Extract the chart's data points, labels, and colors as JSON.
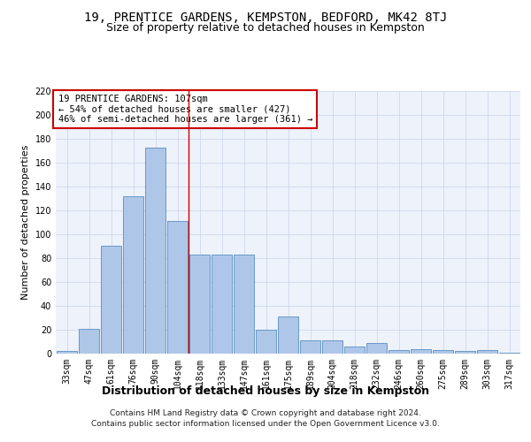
{
  "title1": "19, PRENTICE GARDENS, KEMPSTON, BEDFORD, MK42 8TJ",
  "title2": "Size of property relative to detached houses in Kempston",
  "xlabel": "Distribution of detached houses by size in Kempston",
  "ylabel": "Number of detached properties",
  "categories": [
    "33sqm",
    "47sqm",
    "61sqm",
    "76sqm",
    "90sqm",
    "104sqm",
    "118sqm",
    "133sqm",
    "147sqm",
    "161sqm",
    "175sqm",
    "189sqm",
    "204sqm",
    "218sqm",
    "232sqm",
    "246sqm",
    "260sqm",
    "275sqm",
    "289sqm",
    "303sqm",
    "317sqm"
  ],
  "values": [
    2,
    21,
    90,
    132,
    172,
    111,
    83,
    83,
    83,
    20,
    31,
    11,
    11,
    6,
    9,
    3,
    4,
    3,
    2,
    3,
    1
  ],
  "bar_color": "#aec6e8",
  "bar_edge_color": "#5a8fc0",
  "vline_x": 5.5,
  "annotation_title": "19 PRENTICE GARDENS: 107sqm",
  "annotation_line1": "← 54% of detached houses are smaller (427)",
  "annotation_line2": "46% of semi-detached houses are larger (361) →",
  "vline_color": "#cc0000",
  "annotation_box_edge": "#cc0000",
  "ylim": [
    0,
    220
  ],
  "yticks": [
    0,
    20,
    40,
    60,
    80,
    100,
    120,
    140,
    160,
    180,
    200,
    220
  ],
  "footer1": "Contains HM Land Registry data © Crown copyright and database right 2024.",
  "footer2": "Contains public sector information licensed under the Open Government Licence v3.0.",
  "background_color": "#edf2fb",
  "grid_color": "#c8d4e8",
  "title_fontsize": 10,
  "subtitle_fontsize": 9,
  "xlabel_fontsize": 9,
  "ylabel_fontsize": 8,
  "annot_fontsize": 7.5,
  "tick_fontsize": 7,
  "footer_fontsize": 6.5
}
